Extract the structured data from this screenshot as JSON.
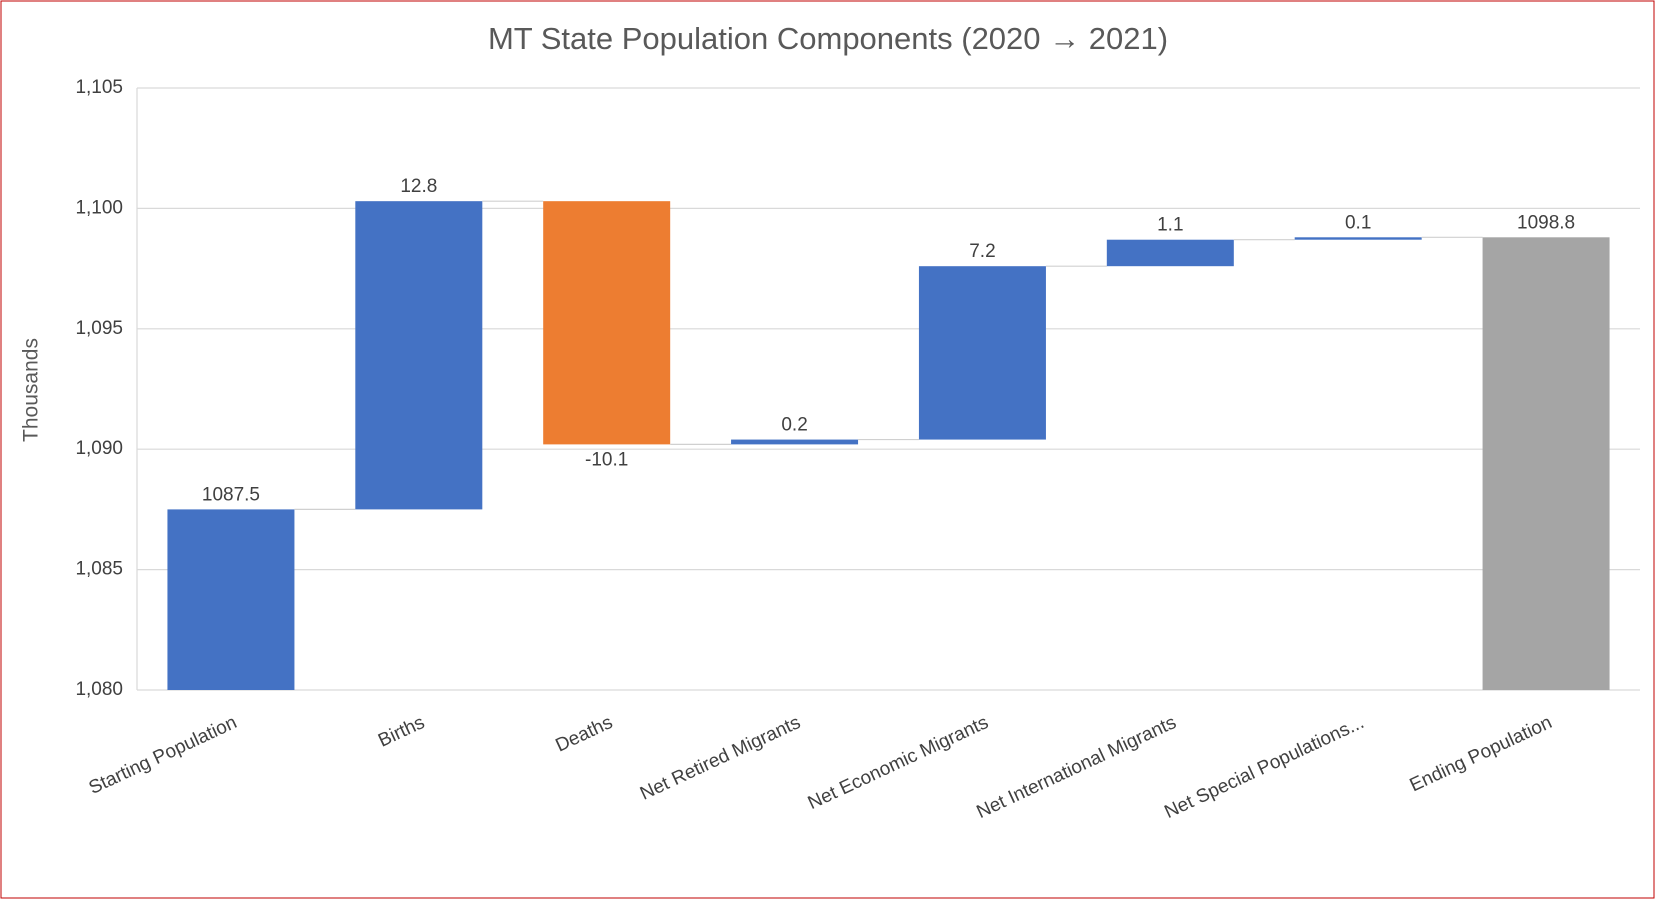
{
  "chart_data": {
    "type": "waterfall",
    "title": "MT State Population Components (2020 → 2021)",
    "y_label": "Thousands",
    "categories": [
      "Starting Population",
      "Births",
      "Deaths",
      "Net Retired Migrants",
      "Net Economic Migrants",
      "Net International Migrants",
      "Net Special Populations...",
      "Ending Population"
    ],
    "values": [
      1087.5,
      12.8,
      -10.1,
      0.2,
      7.2,
      1.1,
      0.1,
      1098.8
    ],
    "is_total": [
      false,
      false,
      false,
      false,
      false,
      false,
      false,
      true
    ],
    "increase_color": "#4472c4",
    "decrease_color": "#ed7d31",
    "total_color": "#a5a5a5",
    "ylim": [
      1080,
      1105
    ],
    "yticks": [
      {
        "value": 1080,
        "label": "1,080"
      },
      {
        "value": 1085,
        "label": "1,085"
      },
      {
        "value": 1090,
        "label": "1,090"
      },
      {
        "value": 1095,
        "label": "1,095"
      },
      {
        "value": 1100,
        "label": "1,100"
      },
      {
        "value": 1105,
        "label": "1,105"
      }
    ],
    "grid": true
  }
}
